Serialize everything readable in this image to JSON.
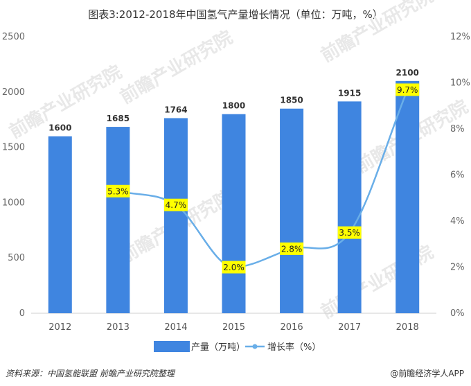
{
  "title": "图表3:2012-2018年中国氢气产量增长情况（单位：万吨，%）",
  "footer": {
    "source": "资料来源：中国氢能联盟 前瞻产业研究院整理",
    "brand": "@前瞻经济学人APP"
  },
  "watermark": "前瞻产业研究院",
  "colors": {
    "bar": "#3f85e0",
    "line": "#69aee8",
    "label_bg": "#ffff00",
    "grid": "#e6e6e6"
  },
  "chart_data": {
    "type": "bar",
    "title": "图表3:2012-2018年中国氢气产量增长情况（单位：万吨，%）",
    "categories": [
      "2012",
      "2013",
      "2014",
      "2015",
      "2016",
      "2017",
      "2018"
    ],
    "series": [
      {
        "name": "产量（万吨）",
        "type": "bar",
        "axis": "left",
        "values": [
          1600,
          1685,
          1764,
          1800,
          1850,
          1915,
          2100
        ],
        "labels": [
          "1600",
          "1685",
          "1764",
          "1800",
          "1850",
          "1915",
          "2100"
        ]
      },
      {
        "name": "增长率（%）",
        "type": "line",
        "axis": "right",
        "smooth": true,
        "values": [
          null,
          5.3,
          4.7,
          2.0,
          2.8,
          3.5,
          9.7
        ],
        "labels": [
          "",
          "5.3%",
          "4.7%",
          "2.0%",
          "2.8%",
          "3.5%",
          "9.7%"
        ]
      }
    ],
    "y_left": {
      "range": [
        0,
        2500
      ],
      "ticks": [
        "0",
        "500",
        "1000",
        "1500",
        "2000",
        "2500"
      ]
    },
    "y_right": {
      "range": [
        0,
        12
      ],
      "ticks": [
        "0%",
        "2%",
        "4%",
        "6%",
        "8%",
        "10%",
        "12%"
      ]
    },
    "grid": false,
    "legend": "bottom"
  }
}
